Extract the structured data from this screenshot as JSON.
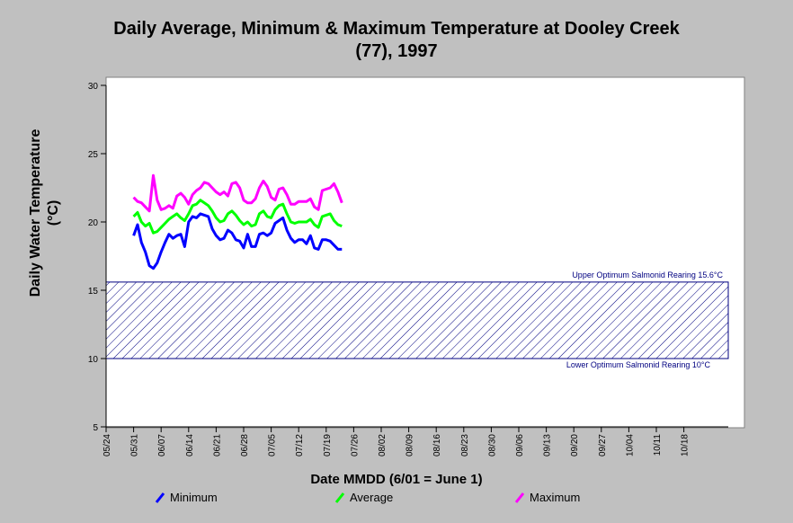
{
  "chart_data": {
    "type": "line",
    "title_line1": "Daily Average, Minimum & Maximum Temperature at Dooley Creek",
    "title_line2": "(77), 1997",
    "ylabel_line1": "Daily Water Temperature",
    "ylabel_line2": "(°C)",
    "xlabel": "Date MMDD (6/01 = June 1)",
    "ylim": [
      5,
      30
    ],
    "yticks": [
      5,
      10,
      15,
      20,
      25,
      30
    ],
    "xticks": [
      "05/24",
      "05/31",
      "06/07",
      "06/14",
      "06/21",
      "06/28",
      "07/05",
      "07/12",
      "07/19",
      "07/26",
      "08/02",
      "08/09",
      "08/16",
      "08/23",
      "08/30",
      "09/06",
      "09/13",
      "09/20",
      "09/27",
      "10/04",
      "10/11",
      "10/18"
    ],
    "x_start_date": "05/24",
    "band": {
      "upper": 15.6,
      "lower": 10,
      "upper_label": "Upper Optimum Salmonid Rearing 15.6°C",
      "lower_label": "Lower Optimum Salmonid Rearing 10°C",
      "color": "#000080"
    },
    "x": [
      "05/31",
      "06/01",
      "06/02",
      "06/03",
      "06/04",
      "06/05",
      "06/06",
      "06/07",
      "06/08",
      "06/09",
      "06/10",
      "06/11",
      "06/12",
      "06/13",
      "06/14",
      "06/15",
      "06/16",
      "06/17",
      "06/18",
      "06/19",
      "06/20",
      "06/21",
      "06/22",
      "06/23",
      "06/24",
      "06/25",
      "06/26",
      "06/27",
      "06/28",
      "06/29",
      "06/30",
      "07/01",
      "07/02",
      "07/03",
      "07/04",
      "07/05",
      "07/06",
      "07/07",
      "07/08",
      "07/09",
      "07/10",
      "07/11",
      "07/12",
      "07/13",
      "07/14",
      "07/15",
      "07/16",
      "07/17",
      "07/18",
      "07/19",
      "07/20",
      "07/21",
      "07/22",
      "07/23"
    ],
    "series": [
      {
        "name": "Minimum",
        "color": "#0000ff",
        "values": [
          19.0,
          19.8,
          18.5,
          17.8,
          16.8,
          16.6,
          17.0,
          17.8,
          18.5,
          19.1,
          18.8,
          19.0,
          19.1,
          18.2,
          20.0,
          20.4,
          20.3,
          20.6,
          20.5,
          20.4,
          19.5,
          19.0,
          18.7,
          18.8,
          19.4,
          19.2,
          18.7,
          18.6,
          18.1,
          19.1,
          18.2,
          18.2,
          19.1,
          19.2,
          19.0,
          19.2,
          19.9,
          20.1,
          20.3,
          19.4,
          18.8,
          18.5,
          18.7,
          18.7,
          18.4,
          19.0,
          18.1,
          18.0,
          18.7,
          18.7,
          18.6,
          18.3,
          18.0,
          18.0
        ]
      },
      {
        "name": "Average",
        "color": "#00ff00",
        "values": [
          20.4,
          20.7,
          20.0,
          19.7,
          19.9,
          19.2,
          19.3,
          19.6,
          19.9,
          20.2,
          20.4,
          20.6,
          20.3,
          20.1,
          20.6,
          21.2,
          21.3,
          21.6,
          21.4,
          21.2,
          20.8,
          20.3,
          20.0,
          20.1,
          20.6,
          20.8,
          20.5,
          20.1,
          19.8,
          20.0,
          19.7,
          19.8,
          20.6,
          20.8,
          20.4,
          20.3,
          20.9,
          21.2,
          21.3,
          20.6,
          20.0,
          19.9,
          20.0,
          20.0,
          20.0,
          20.2,
          19.8,
          19.6,
          20.4,
          20.5,
          20.6,
          20.1,
          19.8,
          19.7
        ]
      },
      {
        "name": "Maximum",
        "color": "#ff00ff",
        "values": [
          21.8,
          21.5,
          21.4,
          21.1,
          20.8,
          23.4,
          21.6,
          20.9,
          21.0,
          21.2,
          21.0,
          21.9,
          22.1,
          21.8,
          21.3,
          22.0,
          22.3,
          22.5,
          22.9,
          22.8,
          22.5,
          22.2,
          22.0,
          22.2,
          21.9,
          22.8,
          22.9,
          22.5,
          21.6,
          21.4,
          21.4,
          21.7,
          22.5,
          23.0,
          22.6,
          21.8,
          21.6,
          22.4,
          22.5,
          22.0,
          21.3,
          21.3,
          21.5,
          21.5,
          21.5,
          21.7,
          21.1,
          20.9,
          22.3,
          22.4,
          22.5,
          22.8,
          22.2,
          21.4
        ]
      }
    ]
  }
}
